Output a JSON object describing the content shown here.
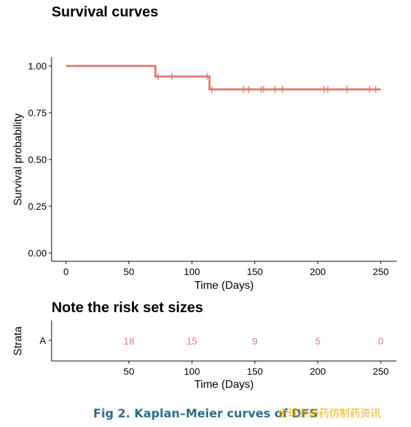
{
  "chart_data": [
    {
      "type": "line",
      "step": true,
      "title": "Survival curves",
      "xlabel": "Time (Days)",
      "ylabel": "Survival probability",
      "xlim": [
        0,
        250
      ],
      "ylim": [
        0,
        1
      ],
      "x_ticks": [
        "0",
        "50",
        "100",
        "150",
        "200",
        "250"
      ],
      "y_ticks": [
        "0.00",
        "0.25",
        "0.50",
        "0.75",
        "1.00"
      ],
      "grid": false,
      "series": [
        {
          "color": "#e07b72",
          "steps": [
            {
              "x": 0,
              "y": 1.0
            },
            {
              "x": 71,
              "y": 0.944
            },
            {
              "x": 114,
              "y": 0.875
            },
            {
              "x": 250,
              "y": 0.875
            }
          ],
          "censor_x": [
            73,
            84,
            112,
            116,
            141,
            145,
            155,
            157,
            166,
            172,
            205,
            208,
            223,
            241,
            246
          ]
        }
      ]
    },
    {
      "type": "table",
      "title": "Note the risk set sizes",
      "xlabel": "Time (Days)",
      "ylabel": "Strata",
      "x_ticks": [
        "50",
        "100",
        "150",
        "200",
        "250"
      ],
      "rows": [
        {
          "stratum": "A",
          "times": [
            50,
            100,
            150,
            200,
            250
          ],
          "counts": [
            "18",
            "15",
            "9",
            "5",
            "0"
          ]
        }
      ]
    }
  ],
  "caption": "Fig 2. Kaplan–Meier curves of DFS",
  "watermark": "全球原研药仿制药资讯"
}
